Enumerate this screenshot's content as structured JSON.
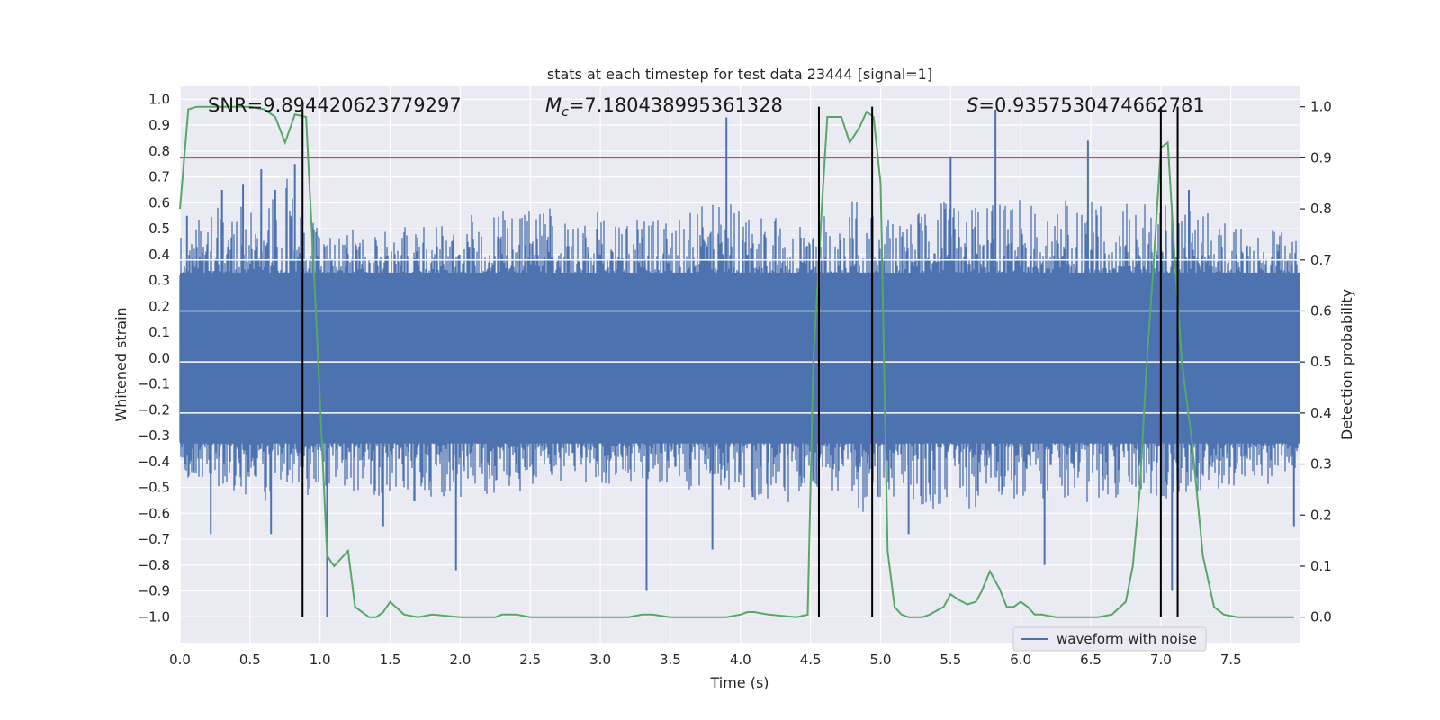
{
  "chart_data": {
    "type": "line",
    "title": "stats at each timestep for test data 23444 [signal=1]",
    "xlabel": "Time (s)",
    "ylabel": "Whitened strain",
    "y2label": "Detection probability",
    "xlim": [
      0.0,
      7.99
    ],
    "ylim": [
      -1.1,
      1.05
    ],
    "y2lim": [
      -0.05,
      1.04
    ],
    "xticks": [
      "0.0",
      "0.5",
      "1.0",
      "1.5",
      "2.0",
      "2.5",
      "3.0",
      "3.5",
      "4.0",
      "4.5",
      "5.0",
      "5.5",
      "6.0",
      "6.5",
      "7.0",
      "7.5"
    ],
    "yticks": [
      "1.0",
      "0.9",
      "0.8",
      "0.7",
      "0.6",
      "0.5",
      "0.4",
      "0.3",
      "0.2",
      "0.1",
      "0.0",
      "−0.1",
      "−0.2",
      "−0.3",
      "−0.4",
      "−0.5",
      "−0.6",
      "−0.7",
      "−0.8",
      "−0.9",
      "−1.0"
    ],
    "y2ticks": [
      "1.0",
      "0.9",
      "0.8",
      "0.7",
      "0.6",
      "0.5",
      "0.4",
      "0.3",
      "0.2",
      "0.1",
      "0.0"
    ],
    "annotations": {
      "snr": "SNR=9.894420623779297",
      "mc_symbol": "M",
      "mc_subscript": "c",
      "mc_value": "=7.180438995361328",
      "s_symbol": "S",
      "s_value": "=0.9357530474662781"
    },
    "legend": {
      "label": "waveform with noise",
      "position": "lower-right"
    },
    "threshold": {
      "value": 0.9,
      "axis": "right",
      "color": "#c44e52"
    },
    "vertical_lines": [
      0.875,
      4.56,
      4.94,
      7.0,
      7.12
    ],
    "series": [
      {
        "name": "waveform with noise",
        "color": "#4c72b0",
        "envelope": {
          "x": [
            0.0,
            0.25,
            0.5,
            0.75,
            1.0,
            1.5,
            2.0,
            2.5,
            3.0,
            3.5,
            3.9,
            4.5,
            4.8,
            5.0,
            5.5,
            6.0,
            6.5,
            7.0,
            7.5,
            7.99
          ],
          "upper": [
            0.45,
            0.6,
            0.62,
            0.7,
            0.5,
            0.5,
            0.55,
            0.6,
            0.55,
            0.55,
            0.6,
            0.5,
            0.62,
            0.55,
            0.6,
            0.6,
            0.62,
            0.6,
            0.55,
            0.45
          ],
          "lower": [
            -0.45,
            -0.5,
            -0.55,
            -0.55,
            -0.5,
            -0.55,
            -0.55,
            -0.5,
            -0.5,
            -0.5,
            -0.55,
            -0.55,
            -0.6,
            -0.55,
            -0.6,
            -0.55,
            -0.55,
            -0.55,
            -0.5,
            -0.45
          ]
        },
        "spikes": [
          [
            0.05,
            0.55
          ],
          [
            0.3,
            0.65
          ],
          [
            0.45,
            0.67
          ],
          [
            0.58,
            0.73
          ],
          [
            0.68,
            0.65
          ],
          [
            0.82,
            0.75
          ],
          [
            3.9,
            0.93
          ],
          [
            5.5,
            0.78
          ],
          [
            5.82,
            0.96
          ],
          [
            6.48,
            0.84
          ],
          [
            7.2,
            0.65
          ],
          [
            0.22,
            -0.68
          ],
          [
            0.65,
            -0.68
          ],
          [
            1.05,
            -1.0
          ],
          [
            1.45,
            -0.65
          ],
          [
            1.97,
            -0.82
          ],
          [
            3.33,
            -0.9
          ],
          [
            3.8,
            -0.74
          ],
          [
            5.2,
            -0.68
          ],
          [
            6.17,
            -0.8
          ],
          [
            7.08,
            -0.9
          ],
          [
            7.95,
            -0.65
          ]
        ]
      },
      {
        "name": "detection probability",
        "axis": "right",
        "color": "#55a868",
        "x": [
          0.0,
          0.06,
          0.12,
          0.2,
          0.3,
          0.5,
          0.6,
          0.68,
          0.75,
          0.82,
          0.9,
          0.97,
          1.0,
          1.05,
          1.1,
          1.2,
          1.25,
          1.35,
          1.4,
          1.45,
          1.5,
          1.6,
          1.7,
          1.8,
          2.0,
          2.2,
          2.25,
          2.3,
          2.4,
          2.5,
          2.6,
          2.8,
          3.0,
          3.2,
          3.3,
          3.37,
          3.5,
          3.7,
          3.9,
          4.0,
          4.05,
          4.1,
          4.2,
          4.4,
          4.48,
          4.52,
          4.58,
          4.62,
          4.66,
          4.72,
          4.78,
          4.85,
          4.9,
          4.95,
          5.0,
          5.05,
          5.1,
          5.15,
          5.2,
          5.25,
          5.3,
          5.35,
          5.45,
          5.5,
          5.55,
          5.62,
          5.68,
          5.72,
          5.78,
          5.85,
          5.9,
          5.95,
          6.0,
          6.05,
          6.1,
          6.15,
          6.25,
          6.35,
          6.45,
          6.55,
          6.65,
          6.75,
          6.8,
          6.85,
          6.9,
          6.95,
          7.0,
          7.05,
          7.1,
          7.15,
          7.22,
          7.3,
          7.38,
          7.45,
          7.55,
          7.7,
          7.8,
          7.9,
          7.95
        ],
        "values": [
          0.8,
          0.995,
          1.0,
          1.0,
          1.0,
          1.0,
          0.995,
          0.98,
          0.93,
          0.985,
          0.98,
          0.6,
          0.42,
          0.12,
          0.1,
          0.13,
          0.02,
          0.0,
          0.0,
          0.01,
          0.03,
          0.005,
          0.0,
          0.005,
          0.0,
          0.0,
          0.0,
          0.005,
          0.005,
          0.0,
          0.0,
          0.0,
          0.0,
          0.0,
          0.005,
          0.005,
          0.0,
          0.0,
          0.0,
          0.005,
          0.01,
          0.01,
          0.005,
          0.0,
          0.005,
          0.5,
          0.8,
          0.98,
          0.98,
          0.98,
          0.93,
          0.96,
          0.99,
          0.98,
          0.85,
          0.13,
          0.02,
          0.005,
          0.0,
          0.0,
          0.0,
          0.005,
          0.02,
          0.045,
          0.035,
          0.025,
          0.03,
          0.05,
          0.09,
          0.055,
          0.02,
          0.02,
          0.03,
          0.02,
          0.005,
          0.005,
          0.0,
          0.0,
          0.0,
          0.0,
          0.005,
          0.03,
          0.1,
          0.25,
          0.5,
          0.7,
          0.92,
          0.93,
          0.7,
          0.5,
          0.35,
          0.12,
          0.02,
          0.005,
          0.0,
          0.0,
          0.0,
          0.0,
          0.0
        ]
      }
    ]
  }
}
